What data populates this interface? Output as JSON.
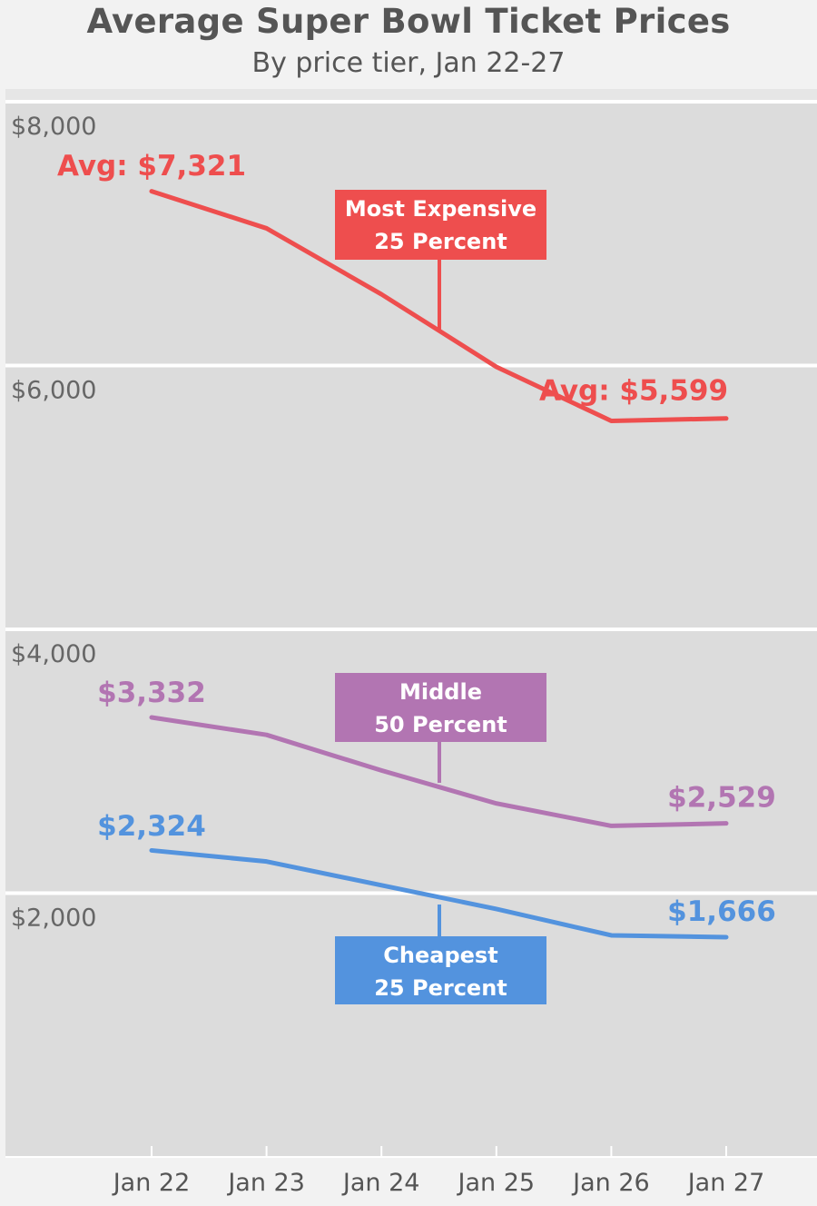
{
  "chart_data": {
    "type": "line",
    "title": "Average Super Bowl Ticket Prices",
    "subtitle": "By price tier, Jan 22-27",
    "xlabel": "",
    "ylabel": "",
    "categories": [
      "Jan 22",
      "Jan 23",
      "Jan 24",
      "Jan 25",
      "Jan 26",
      "Jan 27"
    ],
    "ylim": [
      0,
      8000
    ],
    "yticks": [
      2000,
      4000,
      6000,
      8000
    ],
    "ytick_labels": [
      "$2,000",
      "$4,000",
      "$6,000",
      "$8,000"
    ],
    "grid": true,
    "series": [
      {
        "name": "Most Expensive 25 Percent",
        "name_lines": [
          "Most Expensive",
          "25 Percent"
        ],
        "color": "#ee4e4e",
        "values": [
          7321,
          7040,
          6540,
          5990,
          5580,
          5599
        ],
        "start_label": "Avg: $7,321",
        "end_label": "Avg: $5,599"
      },
      {
        "name": "Middle 50 Percent",
        "name_lines": [
          "Middle",
          "50 Percent"
        ],
        "color": "#b275b2",
        "values": [
          3332,
          3200,
          2930,
          2680,
          2510,
          2529
        ],
        "start_label": "$3,332",
        "end_label": "$2,529"
      },
      {
        "name": "Cheapest 25 Percent",
        "name_lines": [
          "Cheapest",
          "25 Percent"
        ],
        "color": "#5393de",
        "values": [
          2324,
          2240,
          2060,
          1880,
          1680,
          1666
        ],
        "start_label": "$2,324",
        "end_label": "$1,666"
      }
    ]
  }
}
